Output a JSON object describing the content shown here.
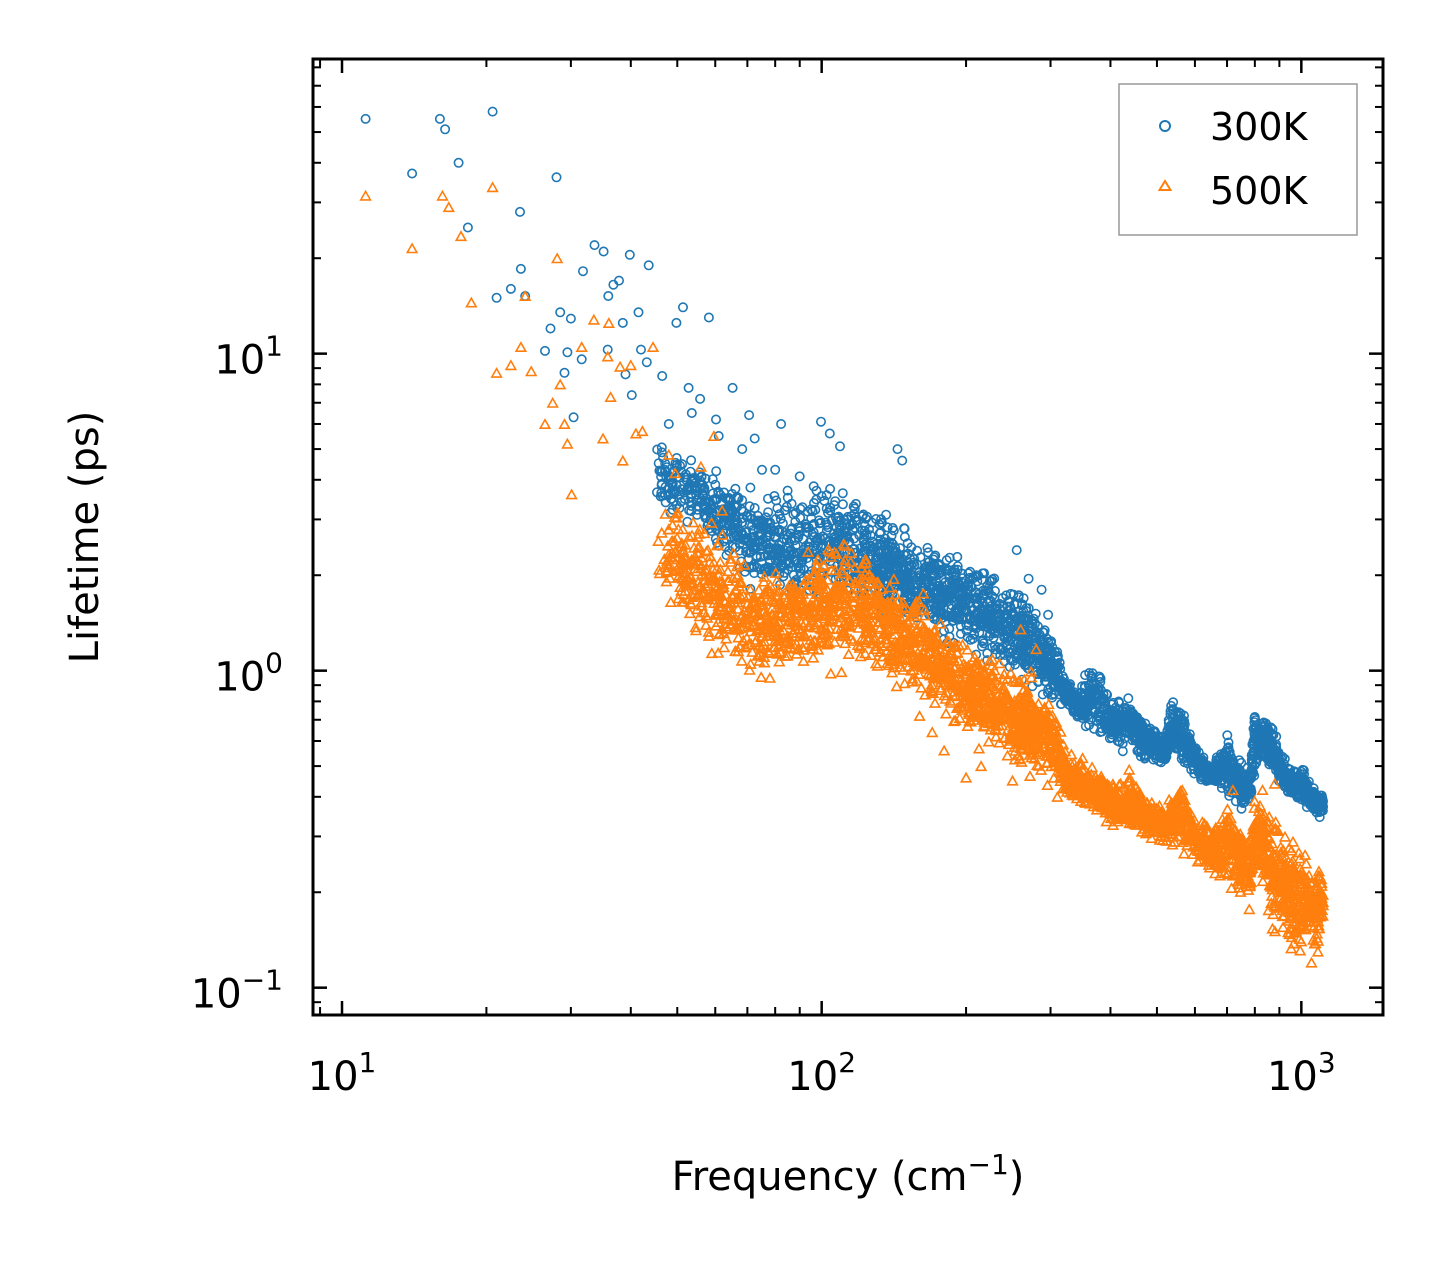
{
  "chart_data": {
    "type": "scatter",
    "title": "",
    "xlabel": "Frequency (cm",
    "xlabel_sup": "−1",
    "xlabel_suffix": ")",
    "ylabel": "Lifetime (ps)",
    "xscale": "log",
    "yscale": "log",
    "xlim": [
      8.7,
      1480
    ],
    "ylim": [
      0.082,
      85
    ],
    "x_ticks": [
      {
        "value": 10,
        "base": "10",
        "exp": "1"
      },
      {
        "value": 100,
        "base": "10",
        "exp": "2"
      },
      {
        "value": 1000,
        "base": "10",
        "exp": "3"
      }
    ],
    "y_ticks": [
      {
        "value": 0.1,
        "base": "10",
        "exp": "−1"
      },
      {
        "value": 1,
        "base": "10",
        "exp": "0"
      },
      {
        "value": 10,
        "base": "10",
        "exp": "1"
      }
    ],
    "legend_position": "top-right",
    "series": [
      {
        "name": "300K",
        "marker": "circle-open",
        "color": "#1f77b4",
        "points": [
          [
            11.2,
            55
          ],
          [
            14.0,
            37
          ],
          [
            16.0,
            55
          ],
          [
            16.4,
            51
          ],
          [
            17.5,
            40
          ],
          [
            18.3,
            25
          ],
          [
            20.6,
            58
          ],
          [
            21.0,
            15
          ],
          [
            22.5,
            16
          ],
          [
            23.5,
            28
          ],
          [
            23.6,
            18.5
          ],
          [
            24.1,
            15.2
          ],
          [
            26.5,
            10.2
          ],
          [
            27.2,
            12
          ],
          [
            28.0,
            36
          ],
          [
            28.5,
            13.5
          ],
          [
            29.1,
            8.7
          ],
          [
            29.5,
            10.1
          ],
          [
            30.0,
            12.9
          ],
          [
            30.4,
            6.3
          ],
          [
            31.6,
            9.6
          ],
          [
            31.8,
            18.2
          ],
          [
            33.6,
            22
          ],
          [
            35.1,
            21
          ],
          [
            35.8,
            10.3
          ],
          [
            35.9,
            15.2
          ],
          [
            36.8,
            16.5
          ],
          [
            37.8,
            17
          ],
          [
            38.5,
            12.5
          ],
          [
            39.0,
            8.6
          ],
          [
            39.8,
            20.5
          ],
          [
            40.2,
            7.4
          ],
          [
            41.5,
            13.5
          ],
          [
            42.0,
            10.3
          ],
          [
            43.2,
            9.4
          ],
          [
            43.6,
            19
          ],
          [
            46.5,
            8.5
          ],
          [
            48.0,
            6.0
          ],
          [
            49.8,
            12.5
          ],
          [
            51.4,
            14
          ],
          [
            52.8,
            7.8
          ],
          [
            53.6,
            6.5
          ],
          [
            55.8,
            7.2
          ],
          [
            58.2,
            13
          ],
          [
            60.2,
            6.2
          ],
          [
            61.0,
            5.5
          ],
          [
            65.2,
            7.8
          ],
          [
            68.3,
            5.0
          ],
          [
            70.6,
            6.4
          ],
          [
            72.5,
            5.4
          ],
          [
            75.1,
            4.3
          ],
          [
            80.0,
            4.3
          ],
          [
            82.3,
            6.0
          ],
          [
            90.0,
            4.1
          ],
          [
            99.7,
            6.1
          ],
          [
            104.0,
            5.6
          ],
          [
            109.2,
            5.1
          ],
          [
            143.9,
            5.0
          ],
          [
            147.2,
            4.6
          ],
          [
            255.0,
            2.4
          ],
          [
            270.0,
            1.95
          ],
          [
            287.4,
            1.8
          ],
          [
            296.5,
            1.5
          ]
        ],
        "band": {
          "note": "dense cloud of modes between the ridge values below",
          "x": [
            45,
            50,
            55,
            60,
            65,
            70,
            75,
            80,
            90,
            100,
            110,
            120,
            130,
            140,
            150,
            160,
            175,
            190,
            200,
            210,
            220,
            235,
            250,
            260,
            275,
            290,
            300,
            310,
            320,
            330,
            345,
            360,
            375,
            390,
            400,
            420,
            440,
            460,
            480,
            500,
            520,
            540,
            560,
            580,
            600,
            620,
            650,
            680,
            700,
            720,
            750,
            780,
            800,
            820,
            850,
            870,
            900,
            930,
            960,
            1000,
            1030,
            1060,
            1090,
            1110
          ],
          "lo": [
            3.0,
            2.8,
            2.6,
            2.3,
            2.0,
            1.8,
            1.6,
            1.55,
            1.5,
            1.5,
            1.5,
            1.45,
            1.4,
            1.35,
            1.3,
            1.25,
            1.2,
            1.15,
            1.1,
            1.05,
            1.0,
            0.95,
            0.9,
            0.85,
            0.8,
            0.78,
            0.78,
            0.75,
            0.74,
            0.73,
            0.67,
            0.62,
            0.6,
            0.58,
            0.57,
            0.55,
            0.54,
            0.52,
            0.5,
            0.49,
            0.48,
            0.5,
            0.48,
            0.47,
            0.45,
            0.44,
            0.43,
            0.4,
            0.39,
            0.38,
            0.36,
            0.35,
            0.45,
            0.5,
            0.48,
            0.45,
            0.42,
            0.4,
            0.38,
            0.37,
            0.36,
            0.35,
            0.33,
            0.34
          ],
          "hi": [
            6.0,
            5.5,
            5.0,
            4.5,
            4.2,
            4.0,
            3.9,
            4.0,
            4.1,
            4.3,
            4.0,
            3.8,
            3.6,
            3.3,
            3.0,
            2.85,
            2.75,
            2.6,
            2.45,
            2.3,
            2.2,
            2.1,
            2.0,
            1.95,
            1.8,
            1.6,
            1.45,
            1.25,
            1.0,
            0.95,
            0.85,
            1.12,
            1.05,
            0.9,
            0.88,
            0.83,
            0.86,
            0.76,
            0.7,
            0.68,
            0.66,
            0.9,
            0.82,
            0.7,
            0.6,
            0.55,
            0.5,
            0.6,
            0.68,
            0.6,
            0.54,
            0.5,
            0.83,
            0.76,
            0.75,
            0.72,
            0.6,
            0.55,
            0.5,
            0.5,
            0.48,
            0.45,
            0.42,
            0.42
          ]
        }
      },
      {
        "name": "500K",
        "marker": "triangle-open",
        "color": "#ff7f0e",
        "points": [
          [
            11.2,
            31.5
          ],
          [
            14.0,
            21.5
          ],
          [
            16.2,
            31.5
          ],
          [
            16.7,
            29
          ],
          [
            17.7,
            23.5
          ],
          [
            18.6,
            14.5
          ],
          [
            20.6,
            33.5
          ],
          [
            21.0,
            8.7
          ],
          [
            22.5,
            9.2
          ],
          [
            23.6,
            10.5
          ],
          [
            24.1,
            15.2
          ],
          [
            24.8,
            8.8
          ],
          [
            26.5,
            6.0
          ],
          [
            27.5,
            7.0
          ],
          [
            28.1,
            20
          ],
          [
            28.5,
            8.0
          ],
          [
            29.1,
            6.0
          ],
          [
            29.5,
            5.2
          ],
          [
            30.1,
            3.6
          ],
          [
            31.6,
            10.5
          ],
          [
            33.5,
            12.8
          ],
          [
            35.0,
            5.4
          ],
          [
            35.8,
            9.8
          ],
          [
            36.0,
            12.5
          ],
          [
            36.3,
            7.3
          ],
          [
            38.0,
            9.1
          ],
          [
            38.5,
            4.6
          ],
          [
            40.0,
            9.2
          ],
          [
            41.0,
            5.6
          ],
          [
            42.3,
            5.7
          ],
          [
            44.5,
            10.5
          ],
          [
            48.0,
            4.8
          ],
          [
            49.5,
            4.2
          ],
          [
            52.0,
            2.5
          ],
          [
            53.5,
            1.75
          ],
          [
            56.0,
            4.4
          ],
          [
            59.6,
            5.5
          ],
          [
            62.0,
            3.2
          ],
          [
            63.5,
            1.5
          ],
          [
            67.0,
            1.35
          ],
          [
            69.0,
            1.55
          ],
          [
            74.0,
            1.2
          ],
          [
            78.0,
            0.95
          ],
          [
            96.0,
            1.1
          ],
          [
            104.5,
            0.98
          ],
          [
            110.0,
            0.99
          ],
          [
            120.0,
            1.18
          ],
          [
            125.0,
            1.25
          ],
          [
            160.0,
            0.72
          ],
          [
            170.0,
            0.64
          ],
          [
            180.0,
            0.56
          ],
          [
            200.0,
            0.46
          ],
          [
            215.0,
            0.5
          ],
          [
            244.0,
            0.54
          ],
          [
            250.0,
            0.45
          ],
          [
            260.0,
            1.35
          ],
          [
            280.0,
            1.17
          ],
          [
            310.0,
            0.4
          ],
          [
            350.0,
            0.53
          ],
          [
            420.0,
            0.44
          ],
          [
            480.0,
            0.32
          ],
          [
            560.0,
            0.4
          ],
          [
            640.0,
            0.31
          ],
          [
            720.0,
            0.42
          ],
          [
            760.0,
            0.23
          ],
          [
            800.0,
            0.28
          ],
          [
            880.0,
            0.44
          ],
          [
            940.0,
            0.25
          ],
          [
            1000.0,
            0.14
          ],
          [
            1050.0,
            0.12
          ],
          [
            1100.0,
            0.22
          ]
        ],
        "band": {
          "note": "dense cloud of modes between the ridge values below",
          "x": [
            45,
            50,
            55,
            60,
            65,
            70,
            75,
            80,
            90,
            100,
            110,
            120,
            130,
            140,
            150,
            160,
            175,
            190,
            200,
            210,
            220,
            235,
            250,
            260,
            275,
            290,
            300,
            310,
            320,
            330,
            345,
            360,
            375,
            390,
            400,
            420,
            440,
            460,
            480,
            500,
            520,
            540,
            560,
            580,
            600,
            620,
            650,
            680,
            700,
            720,
            750,
            780,
            800,
            820,
            850,
            870,
            900,
            930,
            960,
            1000,
            1030,
            1060,
            1090,
            1110
          ],
          "lo": [
            1.6,
            1.4,
            1.2,
            1.0,
            0.9,
            0.85,
            0.85,
            0.9,
            1.0,
            1.05,
            1.0,
            0.95,
            0.9,
            0.85,
            0.8,
            0.75,
            0.7,
            0.62,
            0.58,
            0.55,
            0.52,
            0.5,
            0.48,
            0.45,
            0.43,
            0.42,
            0.42,
            0.4,
            0.38,
            0.37,
            0.36,
            0.35,
            0.34,
            0.33,
            0.32,
            0.31,
            0.3,
            0.3,
            0.29,
            0.29,
            0.28,
            0.27,
            0.26,
            0.25,
            0.24,
            0.23,
            0.22,
            0.21,
            0.2,
            0.19,
            0.19,
            0.17,
            0.2,
            0.22,
            0.16,
            0.14,
            0.13,
            0.13,
            0.12,
            0.12,
            0.12,
            0.12,
            0.12,
            0.16
          ],
          "hi": [
            3.8,
            3.6,
            3.5,
            3.2,
            2.9,
            2.5,
            2.3,
            2.3,
            2.4,
            2.6,
            2.8,
            2.7,
            2.5,
            2.2,
            2.0,
            1.85,
            1.6,
            1.45,
            1.38,
            1.3,
            1.25,
            1.2,
            1.15,
            1.1,
            1.05,
            0.95,
            0.88,
            0.75,
            0.62,
            0.58,
            0.55,
            0.52,
            0.5,
            0.48,
            0.47,
            0.46,
            0.5,
            0.44,
            0.41,
            0.4,
            0.38,
            0.42,
            0.5,
            0.4,
            0.38,
            0.36,
            0.34,
            0.36,
            0.44,
            0.38,
            0.34,
            0.32,
            0.42,
            0.46,
            0.44,
            0.4,
            0.36,
            0.34,
            0.32,
            0.3,
            0.28,
            0.27,
            0.26,
            0.25
          ]
        }
      }
    ]
  }
}
